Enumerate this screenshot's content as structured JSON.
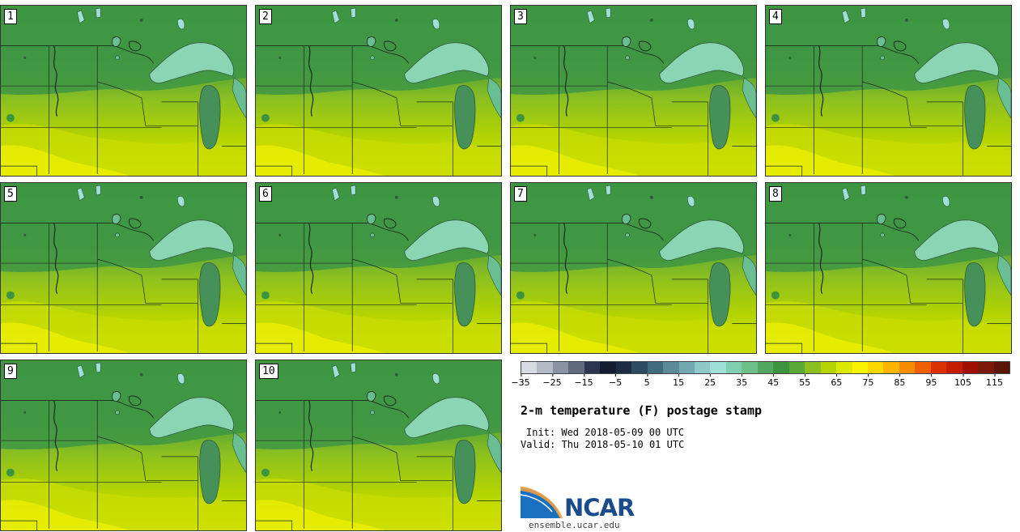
{
  "panels": [
    {
      "number": "1"
    },
    {
      "number": "2"
    },
    {
      "number": "3"
    },
    {
      "number": "4"
    },
    {
      "number": "5"
    },
    {
      "number": "6"
    },
    {
      "number": "7"
    },
    {
      "number": "8"
    },
    {
      "number": "9"
    },
    {
      "number": "10"
    }
  ],
  "colorbar": {
    "colors": [
      "#d6dae2",
      "#b4bac6",
      "#8a93a4",
      "#5f6a80",
      "#2c3650",
      "#141c32",
      "#1c2c44",
      "#2c4a60",
      "#3e6a7c",
      "#5a8a98",
      "#74a8b0",
      "#8ec8c8",
      "#9ee0d8",
      "#7ed0b0",
      "#6ec08a",
      "#52a85e",
      "#3c9440",
      "#5aa838",
      "#8cc020",
      "#b4d400",
      "#dce800",
      "#f8f400",
      "#fcd800",
      "#fcb400",
      "#f88c00",
      "#f06000",
      "#dc3000",
      "#c41c00",
      "#a01000",
      "#7c1808",
      "#5a1408"
    ],
    "tick_labels": [
      "-35",
      "-25",
      "-15",
      "-5",
      "5",
      "15",
      "25",
      "35",
      "45",
      "55",
      "65",
      "75",
      "85",
      "95",
      "105",
      "115"
    ]
  },
  "title": "2-m temperature (F) postage stamp",
  "init_line": "Init: Wed 2018-05-09 00 UTC",
  "valid_line": "Valid: Thu 2018-05-10 01 UTC",
  "logo": {
    "name": "NCAR",
    "url": "ensemble.ucar.edu"
  }
}
